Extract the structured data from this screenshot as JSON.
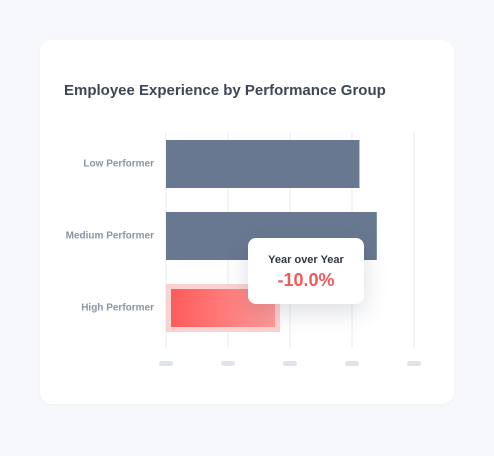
{
  "chart_data": {
    "type": "bar",
    "orientation": "horizontal",
    "title": "Employee Experience by Performance Group",
    "categories": [
      "Low Performer",
      "Medium Performer",
      "High Performer"
    ],
    "values": [
      78,
      85,
      46
    ],
    "xlim": [
      0,
      100
    ],
    "grid": true,
    "highlighted_category": "High Performer",
    "colors": {
      "bar": "#687890",
      "highlight_start": "#ff5a5a",
      "highlight_end": "#ff9a9a",
      "highlight_halo": "#fbd2d2",
      "grid": "#e7eaf0",
      "tick_placeholder": "#dfe4ec"
    }
  },
  "tooltip": {
    "title": "Year over Year",
    "value": "-10.0%",
    "value_color": "#ef5a5a"
  }
}
